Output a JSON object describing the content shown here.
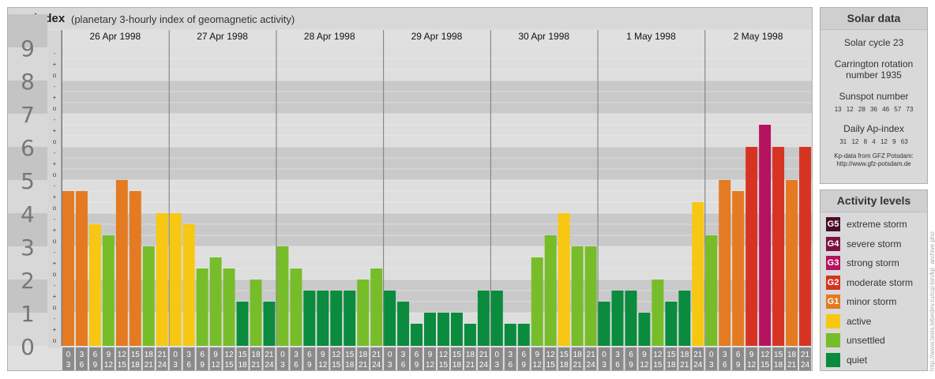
{
  "title": {
    "main": "Kp-index",
    "sub": "(planetary 3-hourly index of geomagnetic activity)"
  },
  "chart_data": {
    "type": "bar",
    "title": "Kp-index",
    "subtitle": "(planetary 3-hourly index of geomagnetic activity)",
    "ylim": [
      0,
      9
    ],
    "y_ticks": [
      "0",
      "1",
      "2",
      "3",
      "4",
      "5",
      "6",
      "7",
      "8",
      "9"
    ],
    "minor_tick_symbols": [
      "o",
      "+",
      "-"
    ],
    "dates": [
      "26 Apr 1998",
      "27 Apr 1998",
      "28 Apr 1998",
      "29 Apr 1998",
      "30 Apr 1998",
      "1 May 1998",
      "2 May 1998"
    ],
    "interval_start_labels": [
      "0",
      "3",
      "6",
      "9",
      "12",
      "15",
      "18",
      "21"
    ],
    "interval_end_labels": [
      "3",
      "6",
      "9",
      "12",
      "15",
      "18",
      "21",
      "24"
    ],
    "values": [
      [
        4.667,
        4.667,
        3.667,
        3.333,
        5.0,
        4.667,
        3.0,
        4.0
      ],
      [
        4.0,
        3.667,
        2.333,
        2.667,
        2.333,
        1.333,
        2.0,
        1.333
      ],
      [
        3.0,
        2.333,
        1.667,
        1.667,
        1.667,
        1.667,
        2.0,
        2.333
      ],
      [
        1.667,
        1.333,
        0.667,
        1.0,
        1.0,
        1.0,
        0.667,
        1.667
      ],
      [
        1.667,
        0.667,
        0.667,
        2.667,
        3.333,
        4.0,
        3.0,
        3.0
      ],
      [
        1.333,
        1.667,
        1.667,
        1.0,
        2.0,
        1.333,
        1.667,
        4.333
      ],
      [
        3.333,
        5.0,
        4.667,
        6.0,
        6.667,
        6.0,
        5.0,
        6.0
      ]
    ],
    "grid": true
  },
  "solar": {
    "heading": "Solar data",
    "cycle": "Solar cycle 23",
    "carrington_line1": "Carrington rotation",
    "carrington_line2": "number 1935",
    "sunspot_heading": "Sunspot number",
    "sunspot_values": "13 12 28 36 46 57 73",
    "ap_heading": "Daily Ap-index",
    "ap_values": "31 12 8 4 12 9 63",
    "credit_line1": "Kp-data from GFZ Potsdam:",
    "credit_line2": "http://www.gfz-potsdam.de"
  },
  "activity": {
    "heading": "Activity levels",
    "levels": [
      {
        "code": "G5",
        "label": "extreme storm",
        "color": "#4a0c2b"
      },
      {
        "code": "G4",
        "label": "severe storm",
        "color": "#7e0f44"
      },
      {
        "code": "G3",
        "label": "strong storm",
        "color": "#b5125f"
      },
      {
        "code": "G2",
        "label": "moderate storm",
        "color": "#d63422"
      },
      {
        "code": "G1",
        "label": "minor storm",
        "color": "#e47a21"
      },
      {
        "code": "",
        "label": "active",
        "color": "#f7c712"
      },
      {
        "code": "",
        "label": "unsettled",
        "color": "#77bd2a"
      },
      {
        "code": "",
        "label": "quiet",
        "color": "#0a8b3d"
      }
    ]
  },
  "side_credit": "http://www.tesis.lebedev.ru/cgi-bin/kp_archive.pho"
}
